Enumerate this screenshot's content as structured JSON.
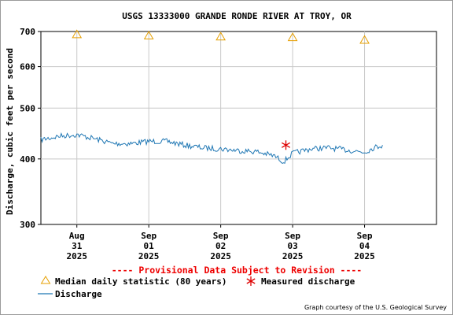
{
  "chart_data": {
    "type": "line",
    "title": "USGS 13333000 GRANDE RONDE RIVER AT TROY, OR",
    "ylabel": "Discharge, cubic feet per second",
    "y_scale": "log",
    "ylim": [
      300,
      700
    ],
    "yticks": [
      300,
      400,
      500,
      600,
      700
    ],
    "xlim": [
      "2025-08-30 12:00",
      "2025-09-05 00:00"
    ],
    "xticks": [
      {
        "at": "2025-08-31 00:00",
        "lines": [
          "Aug",
          "31",
          "2025"
        ]
      },
      {
        "at": "2025-09-01 00:00",
        "lines": [
          "Sep",
          "01",
          "2025"
        ]
      },
      {
        "at": "2025-09-02 00:00",
        "lines": [
          "Sep",
          "02",
          "2025"
        ]
      },
      {
        "at": "2025-09-03 00:00",
        "lines": [
          "Sep",
          "03",
          "2025"
        ]
      },
      {
        "at": "2025-09-04 00:00",
        "lines": [
          "Sep",
          "04",
          "2025"
        ]
      }
    ],
    "grid": true,
    "series": [
      {
        "name": "Discharge",
        "kind": "line",
        "color": "#1f77b4",
        "x": [
          "2025-08-30 12:00",
          "2025-08-30 18:00",
          "2025-08-31 00:00",
          "2025-08-31 06:00",
          "2025-08-31 12:00",
          "2025-08-31 18:00",
          "2025-09-01 00:00",
          "2025-09-01 06:00",
          "2025-09-01 12:00",
          "2025-09-01 18:00",
          "2025-09-02 00:00",
          "2025-09-02 06:00",
          "2025-09-02 12:00",
          "2025-09-02 18:00",
          "2025-09-02 21:00",
          "2025-09-03 00:00",
          "2025-09-03 06:00",
          "2025-09-03 12:00",
          "2025-09-03 18:00",
          "2025-09-04 00:00",
          "2025-09-04 03:00",
          "2025-09-04 06:00"
        ],
        "y": [
          435,
          442,
          445,
          437,
          428,
          428,
          432,
          432,
          425,
          420,
          418,
          415,
          413,
          405,
          395,
          410,
          418,
          420,
          416,
          412,
          420,
          425
        ]
      },
      {
        "name": "Median daily statistic (80 years)",
        "kind": "marker",
        "marker": "triangle",
        "color": "#e69f00",
        "x": [
          "2025-08-31 00:00",
          "2025-09-01 00:00",
          "2025-09-02 00:00",
          "2025-09-03 00:00",
          "2025-09-04 00:00"
        ],
        "y": [
          692,
          688,
          685,
          683,
          675
        ]
      },
      {
        "name": "Measured discharge",
        "kind": "marker",
        "marker": "asterisk",
        "color": "#dd0000",
        "x": [
          "2025-09-02 21:45"
        ],
        "y": [
          425
        ]
      }
    ],
    "annotations": [
      "---- Provisional Data Subject to Revision ----"
    ],
    "legend_placement": "bottom-left",
    "credit": "Graph courtesy of the U.S. Geological Survey"
  }
}
